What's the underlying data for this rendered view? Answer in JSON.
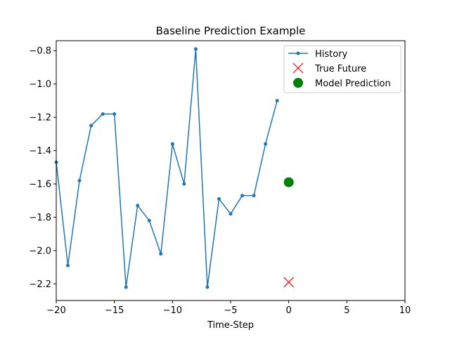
{
  "chart_data": {
    "type": "line",
    "title": "Baseline Prediction Example",
    "xlabel": "Time-Step",
    "ylabel": "",
    "xlim": [
      -20,
      10
    ],
    "ylim": [
      -2.3,
      -0.74
    ],
    "xticks": [
      -20,
      -15,
      -10,
      -5,
      0,
      5,
      10
    ],
    "xtick_labels": [
      "−20",
      "−15",
      "−10",
      "−5",
      "0",
      "5",
      "10"
    ],
    "yticks": [
      -2.2,
      -2.0,
      -1.8,
      -1.6,
      -1.4,
      -1.2,
      -1.0,
      -0.8
    ],
    "ytick_labels": [
      "−2.2",
      "−2.0",
      "−1.8",
      "−1.6",
      "−1.4",
      "−1.2",
      "−1.0",
      "−0.8"
    ],
    "grid": false,
    "legend_position": "top-right",
    "series": [
      {
        "name": "History",
        "kind": "line-with-dots",
        "color": "#1f77b4",
        "x": [
          -20,
          -19,
          -18,
          -17,
          -16,
          -15,
          -14,
          -13,
          -12,
          -11,
          -10,
          -9,
          -8,
          -7,
          -6,
          -5,
          -4,
          -3,
          -2,
          -1
        ],
        "y": [
          -1.47,
          -2.09,
          -1.58,
          -1.25,
          -1.18,
          -1.18,
          -2.22,
          -1.73,
          -1.82,
          -2.02,
          -1.36,
          -1.6,
          -0.79,
          -2.22,
          -1.69,
          -1.78,
          -1.67,
          -1.67,
          -1.36,
          -1.1
        ]
      },
      {
        "name": "True Future",
        "kind": "x-marker",
        "color": "#ff0000",
        "x": [
          0
        ],
        "y": [
          -2.19
        ]
      },
      {
        "name": "Model Prediction",
        "kind": "circle-marker",
        "color": "#008000",
        "x": [
          0
        ],
        "y": [
          -1.59
        ]
      }
    ]
  }
}
